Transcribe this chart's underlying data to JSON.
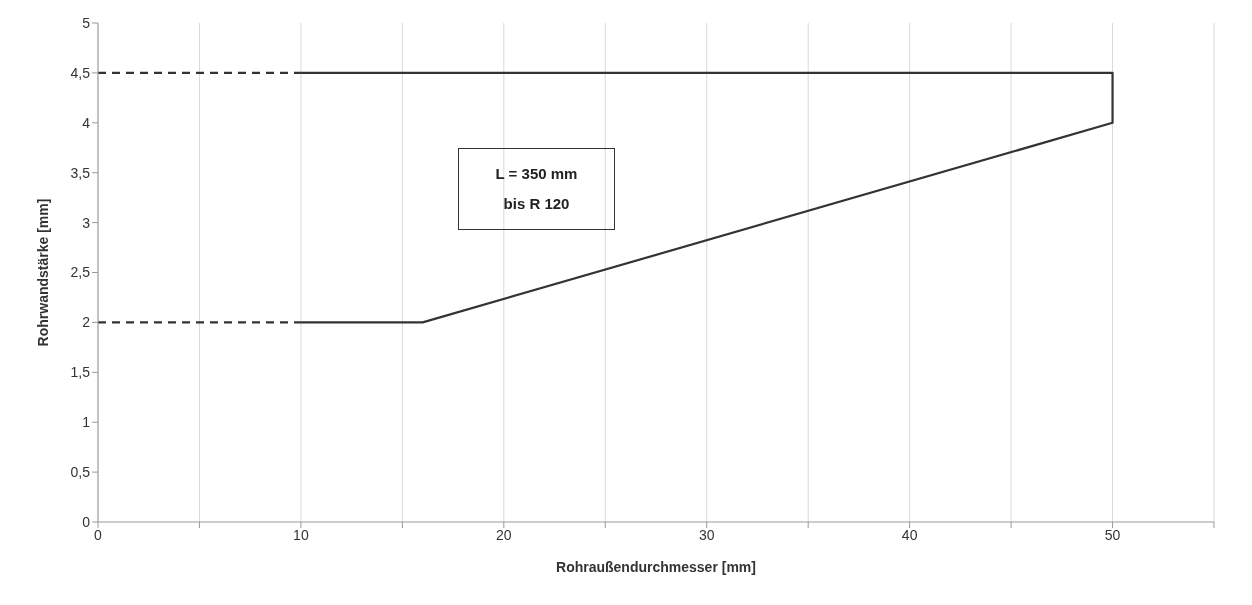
{
  "chart_data": {
    "type": "line",
    "xlabel": "Rohraußendurchmesser [mm]",
    "ylabel": "Rohrwandstärke [mm]",
    "annotations": [
      "L = 350 mm",
      "bis R 120"
    ],
    "xlim": [
      0,
      55
    ],
    "xticks": [
      0,
      {
        "value": 5,
        "label": null
      },
      10,
      {
        "value": 15,
        "label": null
      },
      20,
      {
        "value": 25,
        "label": null
      },
      30,
      {
        "value": 35,
        "label": null
      },
      40,
      {
        "value": 45,
        "label": null
      },
      50,
      {
        "value": 55,
        "label": null
      }
    ],
    "ylim": [
      0,
      5
    ],
    "yticks": [
      0,
      {
        "value": 0.5,
        "label": "0,5"
      },
      1,
      {
        "value": 1.5,
        "label": "1,5"
      },
      2,
      {
        "value": 2.5,
        "label": "2,5"
      },
      3,
      {
        "value": 3.5,
        "label": "3,5"
      },
      4,
      {
        "value": 4.5,
        "label": "4,5"
      },
      5
    ],
    "grid": "x",
    "marker": "none",
    "series": [
      {
        "color": "#333333",
        "line_style": "solid",
        "x": [
          10,
          50,
          50,
          16,
          10
        ],
        "values": [
          4.5,
          4.5,
          4,
          2,
          2
        ]
      },
      {
        "color": "#333333",
        "line_style": "dashed",
        "x": [
          0,
          10
        ],
        "values": [
          4.5,
          4.5
        ]
      },
      {
        "color": "#333333",
        "line_style": "dashed",
        "x": [
          0,
          10
        ],
        "values": [
          2,
          2
        ]
      }
    ]
  }
}
